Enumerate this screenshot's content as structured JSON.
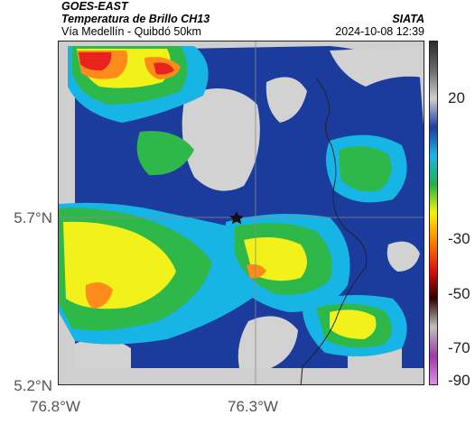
{
  "header": {
    "satellite": "GOES-EAST",
    "product": "Temperatura de Brillo CH13",
    "region": "Vía Medellín - Quibdó 50km",
    "org": "SIATA",
    "datetime": "2024-10-08 12:39"
  },
  "axes": {
    "lat_ticks": [
      "5.7°N",
      "5.2°N"
    ],
    "lon_ticks": [
      "76.8°W",
      "76.3°W"
    ]
  },
  "colorbar": {
    "ticks": [
      "20",
      "-30",
      "-50",
      "-70",
      "-90"
    ],
    "stops": [
      "#2b2b2b",
      "#6a6a6a",
      "#cfcfcf",
      "#1e3ca0",
      "#1fb3e8",
      "#22b24c",
      "#f5f500",
      "#ff7f00",
      "#e01010",
      "#300000",
      "#c0c0c0",
      "#9b3aa8",
      "#e08fe0"
    ]
  },
  "legend_colors": {
    "cold_red": "#e8231e",
    "orange": "#ff8c1a",
    "yellow": "#f2f21a",
    "green": "#2fb84a",
    "cyan": "#17b4e6",
    "blue": "#1b3c9c",
    "gray": "#d2d2d2"
  },
  "marker_icon": "star-icon"
}
